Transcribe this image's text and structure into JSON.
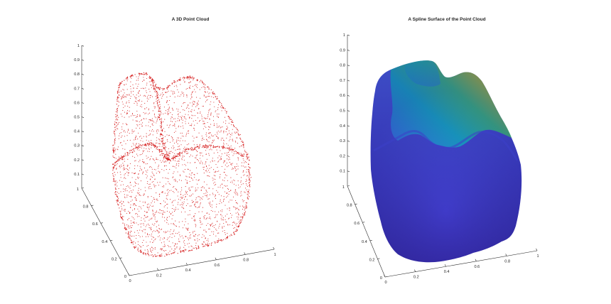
{
  "chart_data": [
    {
      "type": "scatter",
      "title": "A 3D Point Cloud",
      "marker_color": "#d62020",
      "z_ticks": [
        "0.1",
        "0.2",
        "0.3",
        "0.4",
        "0.5",
        "0.6",
        "0.7",
        "0.8",
        "0.9",
        "1"
      ],
      "y_ticks": [
        "0",
        "0.2",
        "0.4",
        "0.6",
        "0.8",
        "1"
      ],
      "x_ticks": [
        "0",
        "0.2",
        "0.4",
        "0.6",
        "0.8",
        "1"
      ],
      "xlim": [
        0,
        1
      ],
      "ylim": [
        0,
        1
      ],
      "zlim": [
        0,
        1
      ],
      "grid": false
    },
    {
      "type": "surface",
      "title": "A Spline Surface of the Point Cloud",
      "colormap": [
        "#3e26a8",
        "#4a42e0",
        "#2f7ff0",
        "#14b4d3",
        "#36c58e",
        "#9ec84a",
        "#f3b43a",
        "#f9d52b"
      ],
      "z_ticks": [
        "0.1",
        "0.2",
        "0.3",
        "0.4",
        "0.5",
        "0.6",
        "0.7",
        "0.8",
        "0.9",
        "1"
      ],
      "y_ticks": [
        "0",
        "0.2",
        "0.4",
        "0.6",
        "0.8",
        "1"
      ],
      "x_ticks": [
        "0",
        "0.2",
        "0.4",
        "0.6",
        "0.8",
        "1"
      ],
      "xlim": [
        0,
        1
      ],
      "ylim": [
        0,
        1
      ],
      "zlim": [
        0,
        1
      ],
      "grid": false
    }
  ]
}
